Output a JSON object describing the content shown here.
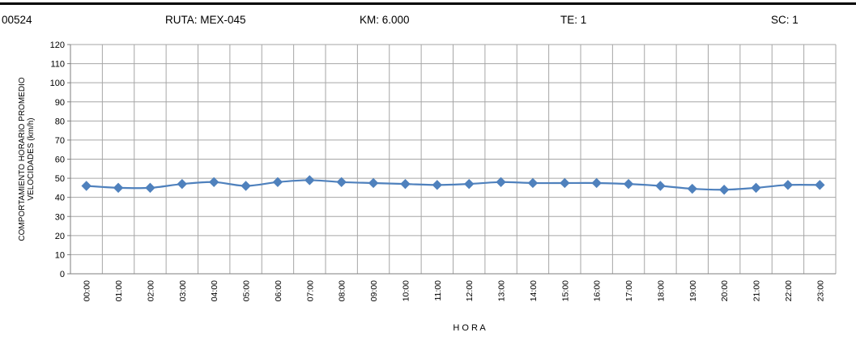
{
  "header": {
    "station_id": "00524",
    "route": "RUTA:  MEX-045",
    "km": "KM:  6.000",
    "te": "TE:  1",
    "sc": "SC:  1"
  },
  "chart_data": {
    "type": "line",
    "title": "",
    "xlabel": "H O R A",
    "ylabel_lines": [
      "COMPORTAMIENTO  HORARIO PROMEDIO",
      "VELOCIDADES  (km/h)"
    ],
    "categories": [
      "00:00",
      "01:00",
      "02:00",
      "03:00",
      "04:00",
      "05:00",
      "06:00",
      "07:00",
      "08:00",
      "09:00",
      "10:00",
      "11:00",
      "12:00",
      "13:00",
      "14:00",
      "15:00",
      "16:00",
      "17:00",
      "18:00",
      "19:00",
      "20:00",
      "21:00",
      "22:00",
      "23:00"
    ],
    "values": [
      46,
      45,
      45,
      47,
      48,
      46,
      48,
      49,
      48,
      47.5,
      47,
      46.5,
      47,
      48,
      47.5,
      47.5,
      47.5,
      47,
      46,
      44.5,
      44,
      45,
      46.5,
      46.5
    ],
    "ylim": [
      0,
      120
    ],
    "ytick_step": 10,
    "grid": true,
    "series_color": "#4f81bd"
  }
}
